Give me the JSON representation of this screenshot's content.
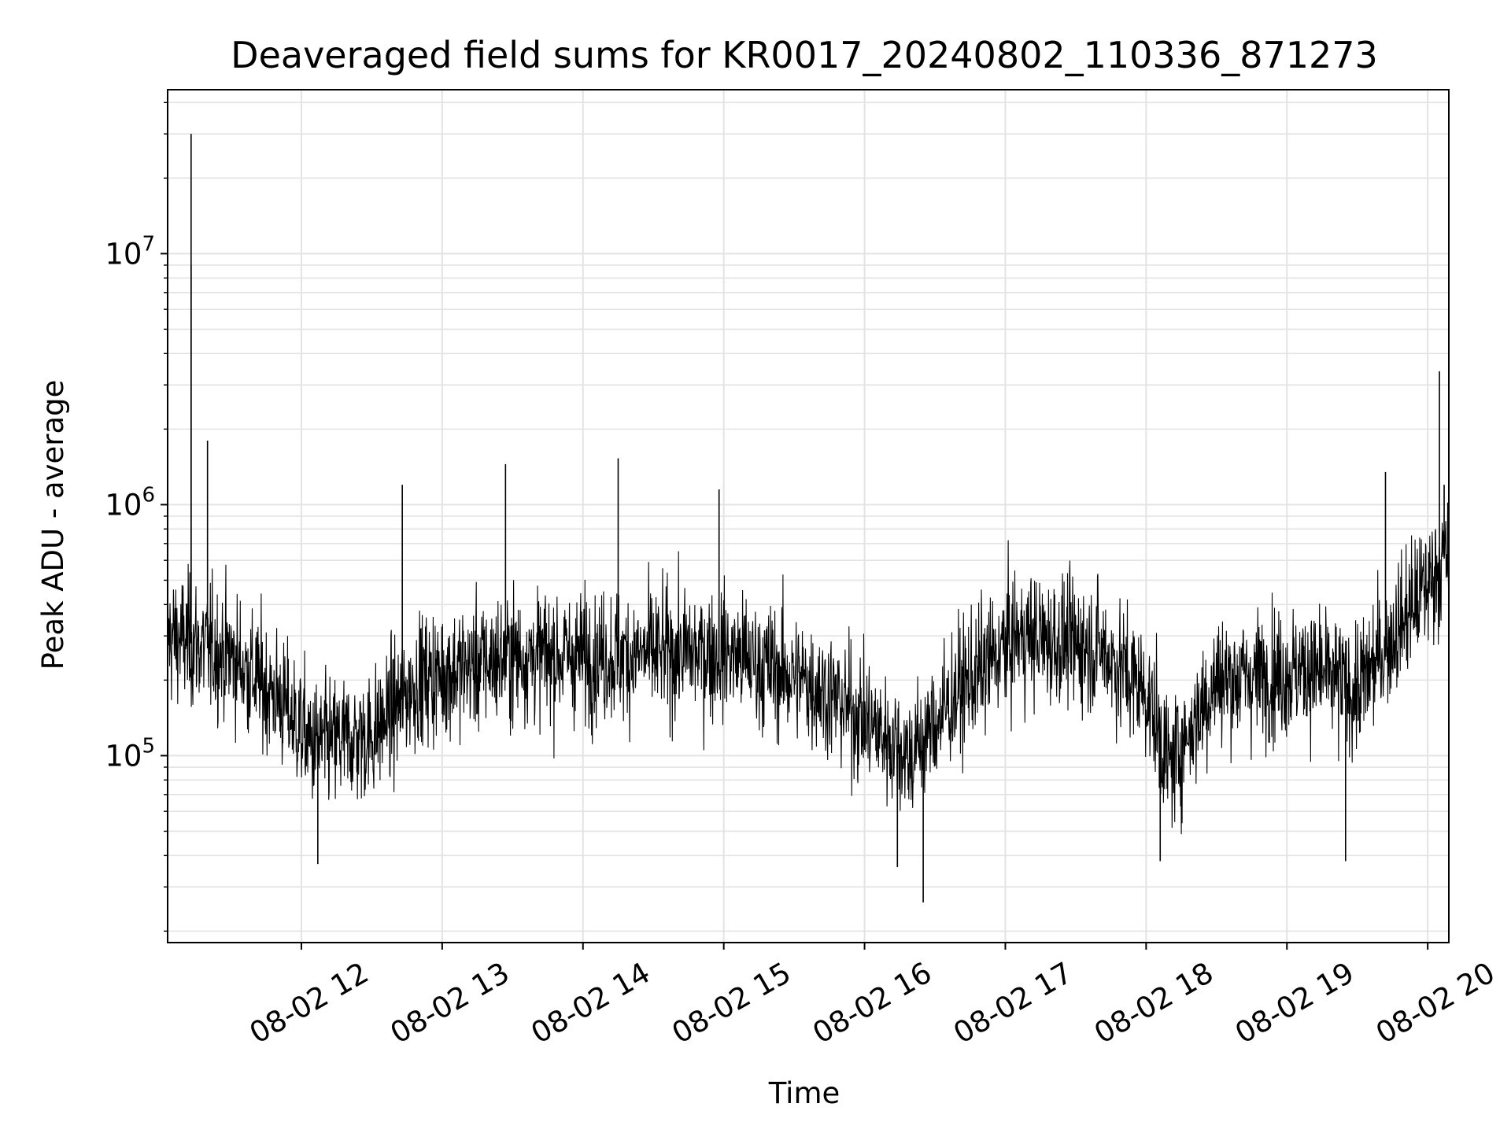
{
  "chart_data": {
    "type": "line",
    "title": "Deaveraged field sums for KR0017_20240802_110336_871273",
    "xlabel": "Time",
    "ylabel": "Peak ADU - average",
    "x_scale": "time",
    "y_scale": "log",
    "x_range": [
      "2024-08-02 11:03",
      "2024-08-02 20:09"
    ],
    "ylim": [
      18000,
      45000000
    ],
    "x_ticks": [
      "08-02 12",
      "08-02 13",
      "08-02 14",
      "08-02 15",
      "08-02 16",
      "08-02 17",
      "08-02 18",
      "08-02 19",
      "08-02 20"
    ],
    "y_ticks": [
      {
        "base": "10",
        "exp": "5",
        "value": 100000
      },
      {
        "base": "10",
        "exp": "6",
        "value": 1000000
      },
      {
        "base": "10",
        "exp": "7",
        "value": 10000000
      }
    ],
    "grid": true,
    "grid_minor": true,
    "line_color": "#000000",
    "series": [
      {
        "values_note": "dense noisy time series (~1 sample / 10 s); anchor points of the rolling level below",
        "level": [
          {
            "t": "2024-08-02 11:03",
            "y": 300000
          },
          {
            "t": "2024-08-02 11:30",
            "y": 250000
          },
          {
            "t": "2024-08-02 11:50",
            "y": 170000
          },
          {
            "t": "2024-08-02 12:05",
            "y": 110000
          },
          {
            "t": "2024-08-02 12:30",
            "y": 120000
          },
          {
            "t": "2024-08-02 12:50",
            "y": 200000
          },
          {
            "t": "2024-08-02 13:30",
            "y": 250000
          },
          {
            "t": "2024-08-02 14:15",
            "y": 250000
          },
          {
            "t": "2024-08-02 15:00",
            "y": 260000
          },
          {
            "t": "2024-08-02 15:40",
            "y": 190000
          },
          {
            "t": "2024-08-02 16:20",
            "y": 100000
          },
          {
            "t": "2024-08-02 16:40",
            "y": 180000
          },
          {
            "t": "2024-08-02 17:05",
            "y": 300000
          },
          {
            "t": "2024-08-02 17:40",
            "y": 270000
          },
          {
            "t": "2024-08-02 18:00",
            "y": 180000
          },
          {
            "t": "2024-08-02 18:10",
            "y": 90000
          },
          {
            "t": "2024-08-02 18:30",
            "y": 200000
          },
          {
            "t": "2024-08-02 19:10",
            "y": 220000
          },
          {
            "t": "2024-08-02 19:30",
            "y": 180000
          },
          {
            "t": "2024-08-02 19:45",
            "y": 300000
          },
          {
            "t": "2024-08-02 20:09",
            "y": 650000
          }
        ],
        "spikes": [
          {
            "t": "2024-08-02 11:13",
            "y": 30000000
          },
          {
            "t": "2024-08-02 11:13",
            "y": 9000000
          },
          {
            "t": "2024-08-02 11:20",
            "y": 1800000
          },
          {
            "t": "2024-08-02 12:43",
            "y": 1200000
          },
          {
            "t": "2024-08-02 13:27",
            "y": 1450000
          },
          {
            "t": "2024-08-02 14:15",
            "y": 1530000
          },
          {
            "t": "2024-08-02 14:58",
            "y": 1150000
          },
          {
            "t": "2024-08-02 19:42",
            "y": 1350000
          },
          {
            "t": "2024-08-02 20:05",
            "y": 3400000
          },
          {
            "t": "2024-08-02 20:07",
            "y": 1200000
          },
          {
            "t": "2024-08-02 16:25",
            "y": 26000
          },
          {
            "t": "2024-08-02 12:07",
            "y": 37000
          },
          {
            "t": "2024-08-02 18:06",
            "y": 38000
          },
          {
            "t": "2024-08-02 19:25",
            "y": 38000
          },
          {
            "t": "2024-08-02 16:14",
            "y": 36000
          }
        ]
      }
    ]
  }
}
